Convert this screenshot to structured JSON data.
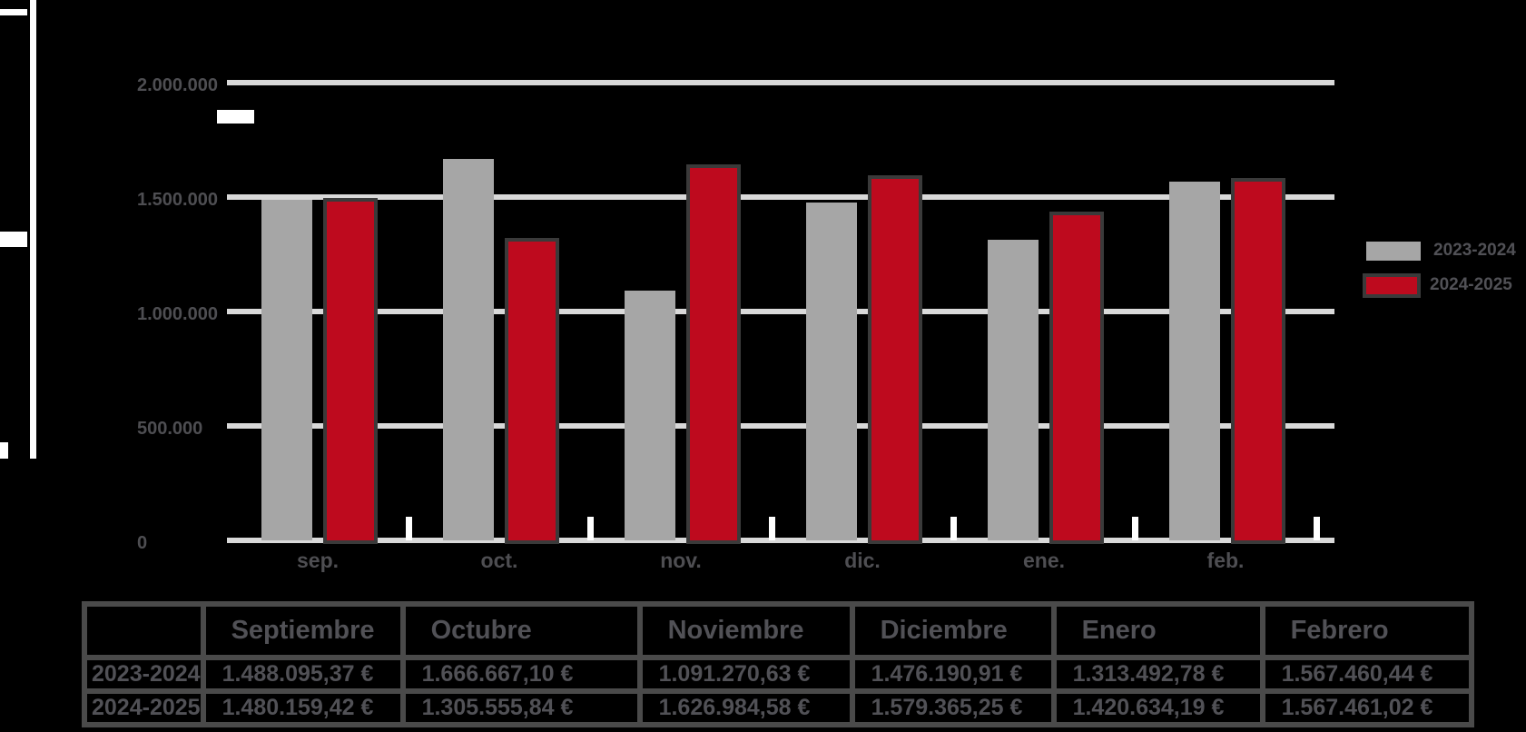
{
  "app": {
    "background": "#000000"
  },
  "colors": {
    "bar_gray": "#A6A6A6",
    "bar_red": "#BE0A1E",
    "red_outline": "#3A3A3A",
    "gridline": "#D9D9D9",
    "axis_text": "#4E4E52",
    "table_text": "#515156",
    "table_border": "#4A4A4A",
    "artifact_white": "#FFFFFF"
  },
  "chart_data": {
    "type": "bar",
    "categories": [
      "sep.",
      "oct.",
      "nov.",
      "dic.",
      "ene.",
      "feb."
    ],
    "series": [
      {
        "name": "2023-2024",
        "color": "#A6A6A6",
        "values": [
          1488095,
          1666667,
          1091270,
          1476190,
          1313492,
          1567460
        ]
      },
      {
        "name": "2024-2025",
        "color": "#BE0A1E",
        "values": [
          1480159,
          1305555,
          1626984,
          1579365,
          1420634,
          1567460
        ]
      }
    ],
    "title": "",
    "xlabel": "",
    "ylabel": "",
    "ylim": [
      0,
      2000000
    ],
    "yticks": [
      {
        "value": 2000000,
        "label": "2.000.000"
      },
      {
        "value": 1500000,
        "label": "1.500.000"
      },
      {
        "value": 1000000,
        "label": "1.000.000"
      },
      {
        "value": 500000,
        "label": "500.000"
      },
      {
        "value": 0,
        "label": "0"
      }
    ],
    "grid": true,
    "legend_position": "right"
  },
  "legend": {
    "entries": [
      {
        "label": "2023-2024",
        "color": "#A6A6A6"
      },
      {
        "label": "2024-2025",
        "color": "#BE0A1E"
      }
    ]
  },
  "table": {
    "headers": [
      "",
      "Septiembre",
      "Octubre",
      "Noviembre",
      "Diciembre",
      "Enero",
      "Febrero"
    ],
    "rows": [
      {
        "label": "2023-2024",
        "values": [
          "1.488.095,37 €",
          "1.666.667,10 €",
          "1.091.270,63 €",
          "1.476.190,91 €",
          "1.313.492,78 €",
          "1.567.460,44 €"
        ]
      },
      {
        "label": "2024-2025",
        "values": [
          "1.480.159,42 €",
          "1.305.555,84 €",
          "1.626.984,58 €",
          "1.579.365,25 €",
          "1.420.634,19 €",
          "1.567.461,02 €"
        ]
      }
    ]
  }
}
